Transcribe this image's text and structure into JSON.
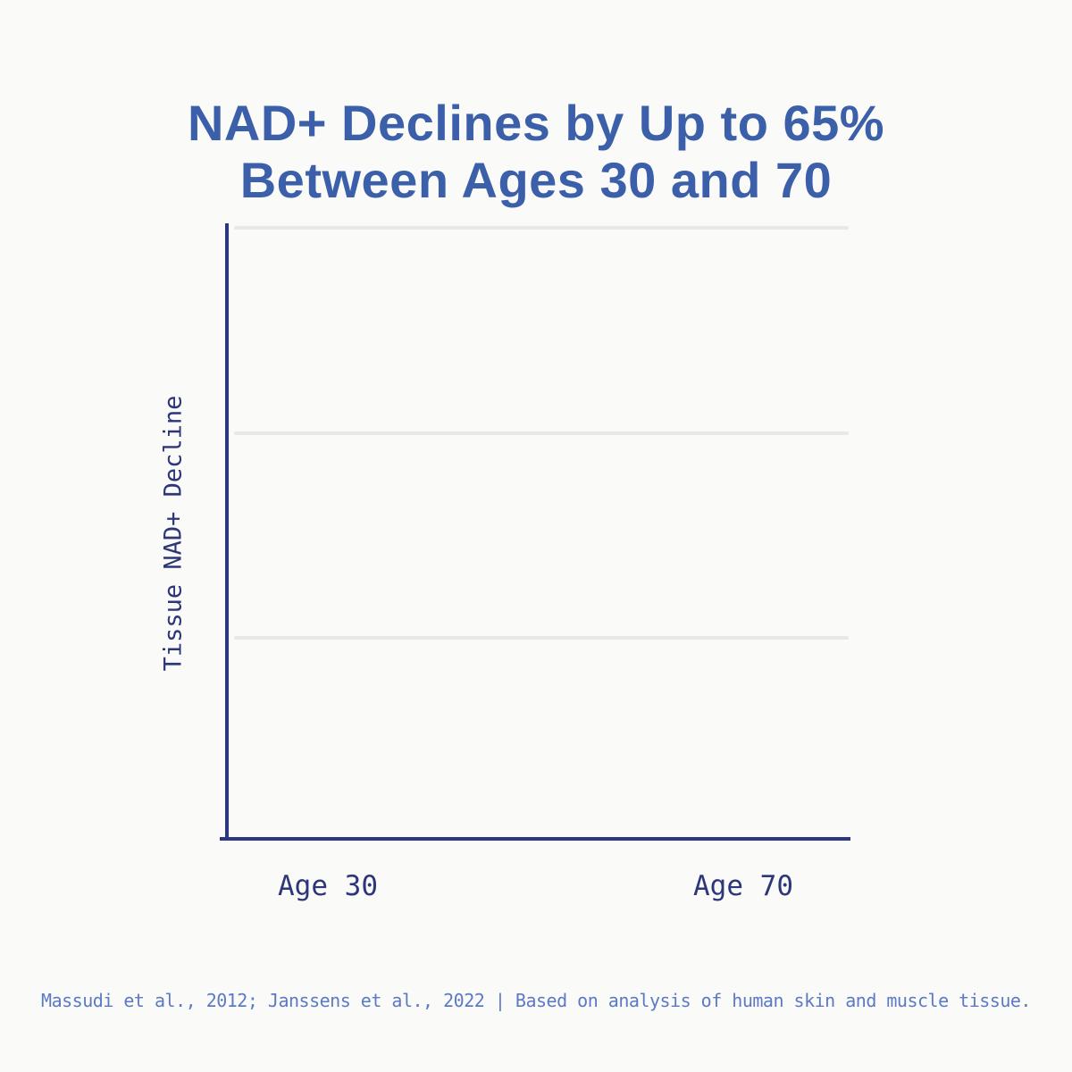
{
  "title": {
    "line1": "NAD+ Declines by Up to 65%",
    "line2": "Between Ages 30 and 70"
  },
  "chart": {
    "ylabel": "Tissue NAD+ Decline",
    "x_ticks": [
      "Age 30",
      "Age 70"
    ]
  },
  "footnote": "Massudi et al., 2012; Janssens et al., 2022 | Based on analysis of human skin and muscle tissue.",
  "colors": {
    "background": "#fafaf9",
    "title_blue": "#3b5fa9",
    "axis_navy": "#2d3680",
    "tick_navy": "#2c3679",
    "gridline_gray": "#e8e8e6",
    "footnote_blue": "#5c79c6"
  },
  "chart_data": {
    "type": "bar",
    "categories": [
      "Age 30",
      "Age 70"
    ],
    "values": [],
    "title": "NAD+ Declines by Up to 65% Between Ages 30 and 70",
    "xlabel": "",
    "ylabel": "Tissue NAD+ Decline",
    "ylim_note": "no y tick labels shown",
    "gridlines": 3,
    "grid": "horizontal",
    "legend": false,
    "plot_state": "empty plot area, no bars rendered in this frame"
  }
}
